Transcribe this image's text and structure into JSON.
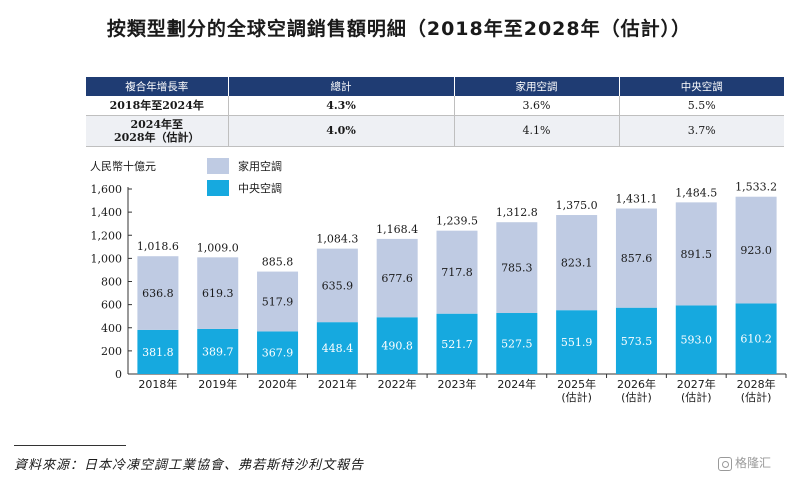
{
  "title": "按類型劃分的全球空調銷售額明細（2018年至2028年（估計））",
  "cagr_table": {
    "headers": [
      "複合年增長率",
      "總計",
      "家用空調",
      "中央空調"
    ],
    "rows": [
      {
        "label": "2018年至2024年",
        "total": "4.3%",
        "household": "3.6%",
        "central": "5.5%"
      },
      {
        "label": "2024年至\n2028年（估計）",
        "total": "4.0%",
        "household": "4.1%",
        "central": "3.7%"
      }
    ]
  },
  "chart_data": {
    "type": "bar",
    "stacked": true,
    "ylabel": "人民幣十億元",
    "ylim": [
      0,
      1600
    ],
    "yticks": [
      0,
      200,
      400,
      600,
      800,
      1000,
      1200,
      1400,
      1600
    ],
    "ytick_labels": [
      "0",
      "200",
      "400",
      "600",
      "800",
      "1,000",
      "1,200",
      "1,400",
      "1,600"
    ],
    "categories": [
      "2018年",
      "2019年",
      "2020年",
      "2021年",
      "2022年",
      "2023年",
      "2024年",
      "2025年\n(估計)",
      "2026年\n(估計)",
      "2027年\n(估計)",
      "2028年\n(估計)"
    ],
    "series": [
      {
        "name": "中央空調",
        "color": "#16a9df",
        "values": [
          381.8,
          389.7,
          367.9,
          448.4,
          490.8,
          521.7,
          527.5,
          551.9,
          573.5,
          593.0,
          610.2
        ],
        "labels": [
          "381.8",
          "389.7",
          "367.9",
          "448.4",
          "490.8",
          "521.7",
          "527.5",
          "551.9",
          "573.5",
          "593.0",
          "610.2"
        ]
      },
      {
        "name": "家用空調",
        "color": "#bfcbe3",
        "values": [
          636.8,
          619.3,
          517.9,
          635.9,
          677.6,
          717.8,
          785.3,
          823.1,
          857.6,
          891.5,
          923.0
        ],
        "labels": [
          "636.8",
          "619.3",
          "517.9",
          "635.9",
          "677.6",
          "717.8",
          "785.3",
          "823.1",
          "857.6",
          "891.5",
          "923.0"
        ]
      }
    ],
    "totals": [
      1018.6,
      1009.0,
      885.8,
      1084.3,
      1168.4,
      1239.5,
      1312.8,
      1375.0,
      1431.1,
      1484.5,
      1533.2
    ],
    "total_labels": [
      "1,018.6",
      "1,009.0",
      "885.8",
      "1,084.3",
      "1,168.4",
      "1,239.5",
      "1,312.8",
      "1,375.0",
      "1,431.1",
      "1,484.5",
      "1,533.2"
    ],
    "legend": [
      {
        "name": "家用空調",
        "color": "#bfcbe3"
      },
      {
        "name": "中央空調",
        "color": "#16a9df"
      }
    ],
    "legend_position": "top-left"
  },
  "source": "資料來源：日本冷凍空調工業協會、弗若斯特沙利文報告",
  "watermark": "格隆汇"
}
